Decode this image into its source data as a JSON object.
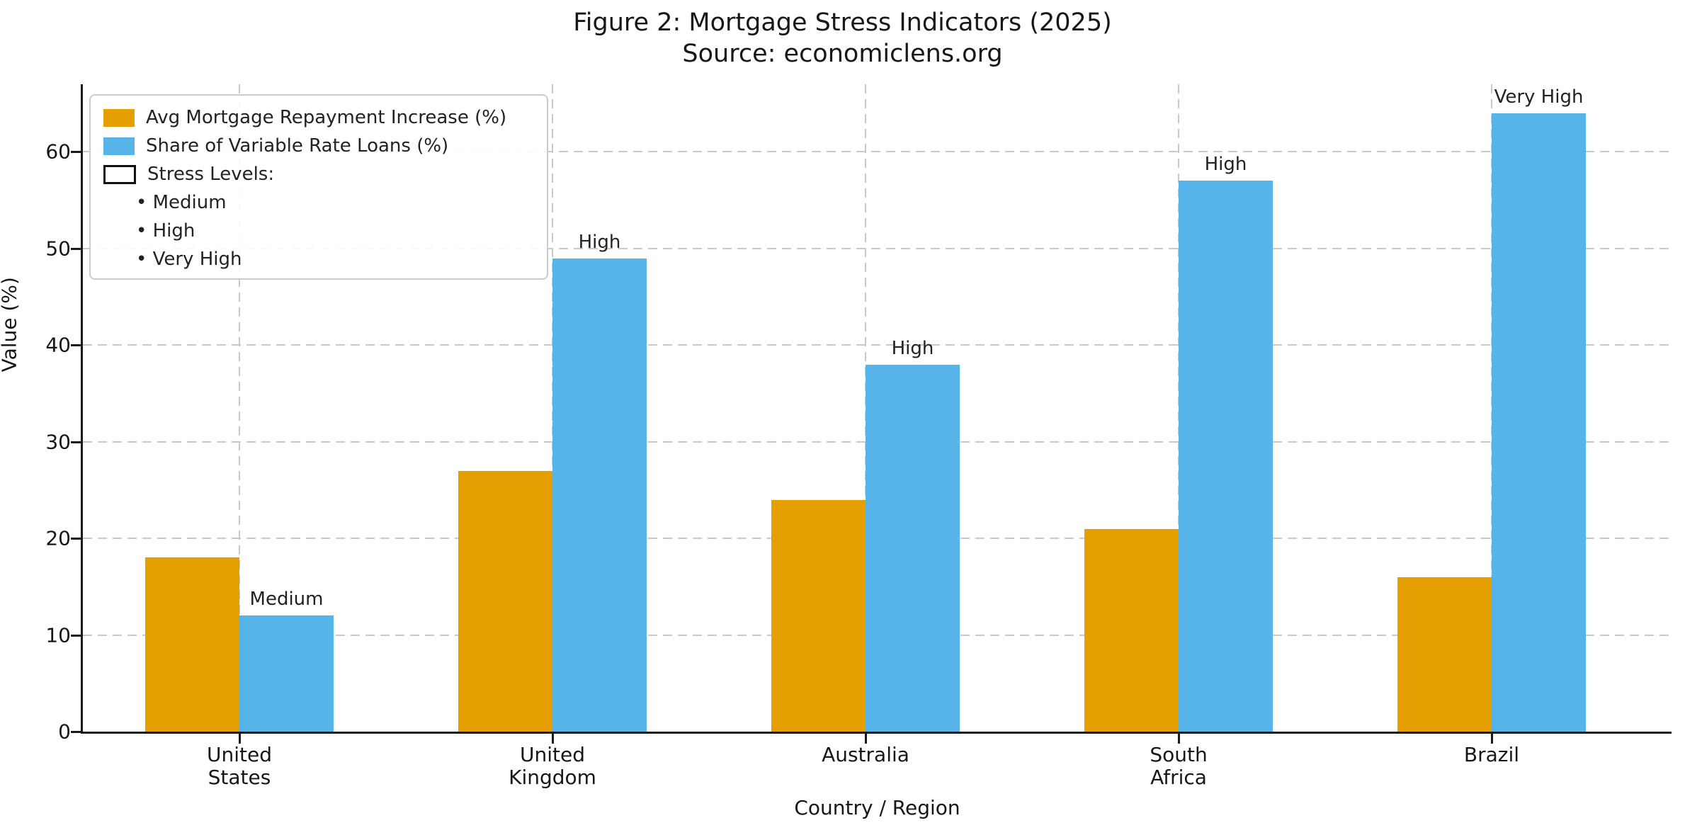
{
  "chart_data": {
    "type": "bar",
    "title": "Figure 2: Mortgage Stress Indicators (2025)",
    "subtitle": "Source: economiclens.org",
    "xlabel": "Country / Region",
    "ylabel": "Value (%)",
    "categories": [
      "United\nStates",
      "United\nKingdom",
      "Australia",
      "South\nAfrica",
      "Brazil"
    ],
    "series": [
      {
        "name": "Avg Mortgage Repayment Increase (%)",
        "color": "#E69F00",
        "values": [
          18,
          27,
          24,
          21,
          16
        ]
      },
      {
        "name": "Share of Variable Rate Loans (%)",
        "color": "#56B4E9",
        "values": [
          12,
          49,
          38,
          57,
          64
        ]
      }
    ],
    "bar_annotations": {
      "on_series": "Share of Variable Rate Loans (%)",
      "labels": [
        "Medium",
        "High",
        "High",
        "High",
        "Very High"
      ]
    },
    "yticks": [
      0,
      10,
      20,
      30,
      40,
      50,
      60
    ],
    "ylim": [
      0,
      67
    ],
    "grid": true,
    "grid_style": "dashed",
    "legend": {
      "position": "upper left",
      "entries": [
        {
          "label": "Avg Mortgage Repayment Increase (%)",
          "swatch": "#E69F00"
        },
        {
          "label": "Share of Variable Rate Loans (%)",
          "swatch": "#56B4E9"
        },
        {
          "label": "Stress Levels:",
          "swatch": "outline"
        }
      ],
      "bullet_items": [
        "Medium",
        "High",
        "Very High"
      ]
    }
  },
  "colors": {
    "background": "#ffffff",
    "text": "#171717",
    "grid": "#c9c9c9",
    "spine": "#1a1a1a",
    "legend_border": "#cccccc",
    "series_orange": "#E69F00",
    "series_blue": "#56B4E9"
  }
}
